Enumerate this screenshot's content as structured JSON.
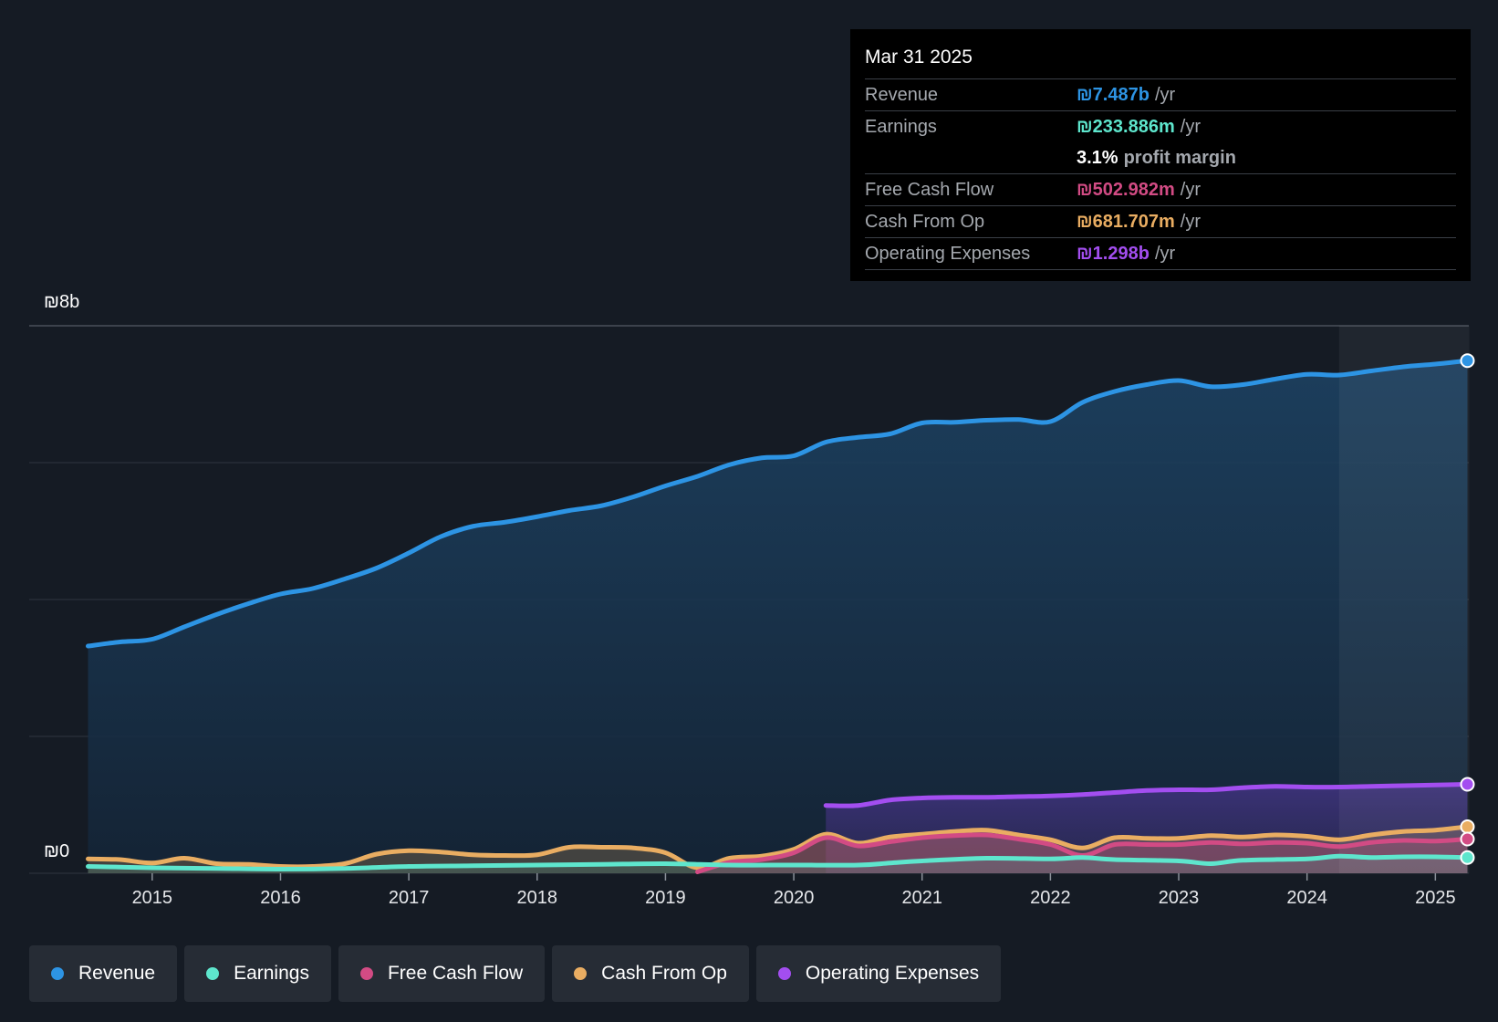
{
  "colors": {
    "revenue": "#2d94e4",
    "earnings": "#5ee6cd",
    "fcf": "#d24b84",
    "cfo": "#e9ad62",
    "opex": "#a34ef0"
  },
  "tooltip": {
    "date": "Mar 31 2025",
    "rows": {
      "revenue": {
        "label": "Revenue",
        "value": "₪7.487b",
        "unit": "/yr"
      },
      "earnings": {
        "label": "Earnings",
        "value": "₪233.886m",
        "unit": "/yr"
      },
      "margin": {
        "pct": "3.1%",
        "label": "profit margin"
      },
      "fcf": {
        "label": "Free Cash Flow",
        "value": "₪502.982m",
        "unit": "/yr"
      },
      "cfo": {
        "label": "Cash From Op",
        "value": "₪681.707m",
        "unit": "/yr"
      },
      "opex": {
        "label": "Operating Expenses",
        "value": "₪1.298b",
        "unit": "/yr"
      }
    }
  },
  "legend": {
    "revenue": "Revenue",
    "earnings": "Earnings",
    "fcf": "Free Cash Flow",
    "cfo": "Cash From Op",
    "opex": "Operating Expenses"
  },
  "chart_data": {
    "type": "area",
    "currency": "₪",
    "units": "billions",
    "ylim": [
      0,
      8
    ],
    "y_labels": {
      "top": "₪8b",
      "bottom": "₪0"
    },
    "x_ticks": [
      "2015",
      "2016",
      "2017",
      "2018",
      "2019",
      "2020",
      "2021",
      "2022",
      "2023",
      "2024",
      "2025"
    ],
    "forecast_shade_start": 2024.25,
    "series": [
      {
        "key": "revenue",
        "name": "Revenue",
        "points": [
          [
            2014.5,
            3.32
          ],
          [
            2014.75,
            3.38
          ],
          [
            2015.0,
            3.42
          ],
          [
            2015.25,
            3.6
          ],
          [
            2015.5,
            3.78
          ],
          [
            2015.75,
            3.94
          ],
          [
            2016.0,
            4.08
          ],
          [
            2016.25,
            4.16
          ],
          [
            2016.5,
            4.3
          ],
          [
            2016.75,
            4.46
          ],
          [
            2017.0,
            4.68
          ],
          [
            2017.25,
            4.92
          ],
          [
            2017.5,
            5.07
          ],
          [
            2017.75,
            5.13
          ],
          [
            2018.0,
            5.21
          ],
          [
            2018.25,
            5.3
          ],
          [
            2018.5,
            5.37
          ],
          [
            2018.75,
            5.5
          ],
          [
            2019.0,
            5.66
          ],
          [
            2019.25,
            5.8
          ],
          [
            2019.5,
            5.97
          ],
          [
            2019.75,
            6.07
          ],
          [
            2020.0,
            6.1
          ],
          [
            2020.25,
            6.3
          ],
          [
            2020.5,
            6.37
          ],
          [
            2020.75,
            6.42
          ],
          [
            2021.0,
            6.58
          ],
          [
            2021.25,
            6.59
          ],
          [
            2021.5,
            6.62
          ],
          [
            2021.75,
            6.63
          ],
          [
            2022.0,
            6.6
          ],
          [
            2022.25,
            6.88
          ],
          [
            2022.5,
            7.04
          ],
          [
            2022.75,
            7.14
          ],
          [
            2023.0,
            7.2
          ],
          [
            2023.25,
            7.11
          ],
          [
            2023.5,
            7.14
          ],
          [
            2023.75,
            7.22
          ],
          [
            2024.0,
            7.29
          ],
          [
            2024.25,
            7.28
          ],
          [
            2024.5,
            7.34
          ],
          [
            2024.75,
            7.4
          ],
          [
            2025.0,
            7.44
          ],
          [
            2025.25,
            7.49
          ]
        ]
      },
      {
        "key": "opex",
        "name": "Operating Expenses",
        "points": [
          [
            2020.25,
            0.99
          ],
          [
            2020.5,
            0.99
          ],
          [
            2020.75,
            1.07
          ],
          [
            2021.0,
            1.1
          ],
          [
            2021.25,
            1.11
          ],
          [
            2021.5,
            1.11
          ],
          [
            2021.75,
            1.12
          ],
          [
            2022.0,
            1.13
          ],
          [
            2022.25,
            1.15
          ],
          [
            2022.5,
            1.18
          ],
          [
            2022.75,
            1.21
          ],
          [
            2023.0,
            1.22
          ],
          [
            2023.25,
            1.22
          ],
          [
            2023.5,
            1.25
          ],
          [
            2023.75,
            1.27
          ],
          [
            2024.0,
            1.26
          ],
          [
            2024.25,
            1.26
          ],
          [
            2024.5,
            1.27
          ],
          [
            2024.75,
            1.28
          ],
          [
            2025.0,
            1.29
          ],
          [
            2025.25,
            1.3
          ]
        ]
      },
      {
        "key": "cfo",
        "name": "Cash From Op",
        "points": [
          [
            2014.5,
            0.21
          ],
          [
            2014.75,
            0.2
          ],
          [
            2015.0,
            0.15
          ],
          [
            2015.25,
            0.22
          ],
          [
            2015.5,
            0.14
          ],
          [
            2015.75,
            0.13
          ],
          [
            2016.0,
            0.1
          ],
          [
            2016.25,
            0.1
          ],
          [
            2016.5,
            0.14
          ],
          [
            2016.75,
            0.28
          ],
          [
            2017.0,
            0.33
          ],
          [
            2017.25,
            0.31
          ],
          [
            2017.5,
            0.27
          ],
          [
            2017.75,
            0.26
          ],
          [
            2018.0,
            0.27
          ],
          [
            2018.25,
            0.38
          ],
          [
            2018.5,
            0.38
          ],
          [
            2018.75,
            0.37
          ],
          [
            2019.0,
            0.3
          ],
          [
            2019.25,
            0.08
          ],
          [
            2019.5,
            0.22
          ],
          [
            2019.75,
            0.25
          ],
          [
            2020.0,
            0.35
          ],
          [
            2020.25,
            0.57
          ],
          [
            2020.5,
            0.44
          ],
          [
            2020.75,
            0.53
          ],
          [
            2021.0,
            0.57
          ],
          [
            2021.25,
            0.61
          ],
          [
            2021.5,
            0.63
          ],
          [
            2021.75,
            0.56
          ],
          [
            2022.0,
            0.49
          ],
          [
            2022.25,
            0.37
          ],
          [
            2022.5,
            0.52
          ],
          [
            2022.75,
            0.51
          ],
          [
            2023.0,
            0.51
          ],
          [
            2023.25,
            0.55
          ],
          [
            2023.5,
            0.53
          ],
          [
            2023.75,
            0.56
          ],
          [
            2024.0,
            0.54
          ],
          [
            2024.25,
            0.49
          ],
          [
            2024.5,
            0.56
          ],
          [
            2024.75,
            0.61
          ],
          [
            2025.0,
            0.63
          ],
          [
            2025.25,
            0.68
          ]
        ]
      },
      {
        "key": "fcf",
        "name": "Free Cash Flow",
        "points": [
          [
            2019.25,
            0.02
          ],
          [
            2019.5,
            0.16
          ],
          [
            2019.75,
            0.2
          ],
          [
            2020.0,
            0.3
          ],
          [
            2020.25,
            0.52
          ],
          [
            2020.5,
            0.4
          ],
          [
            2020.75,
            0.46
          ],
          [
            2021.0,
            0.52
          ],
          [
            2021.25,
            0.55
          ],
          [
            2021.5,
            0.56
          ],
          [
            2021.75,
            0.5
          ],
          [
            2022.0,
            0.42
          ],
          [
            2022.25,
            0.26
          ],
          [
            2022.5,
            0.42
          ],
          [
            2022.75,
            0.42
          ],
          [
            2023.0,
            0.42
          ],
          [
            2023.25,
            0.45
          ],
          [
            2023.5,
            0.43
          ],
          [
            2023.75,
            0.45
          ],
          [
            2024.0,
            0.44
          ],
          [
            2024.25,
            0.39
          ],
          [
            2024.5,
            0.45
          ],
          [
            2024.75,
            0.48
          ],
          [
            2025.0,
            0.47
          ],
          [
            2025.25,
            0.5
          ]
        ]
      },
      {
        "key": "earnings",
        "name": "Earnings",
        "points": [
          [
            2014.5,
            0.1
          ],
          [
            2014.75,
            0.09
          ],
          [
            2015.0,
            0.08
          ],
          [
            2015.5,
            0.07
          ],
          [
            2016.0,
            0.06
          ],
          [
            2016.5,
            0.07
          ],
          [
            2017.0,
            0.1
          ],
          [
            2017.5,
            0.11
          ],
          [
            2018.0,
            0.12
          ],
          [
            2018.5,
            0.13
          ],
          [
            2019.0,
            0.14
          ],
          [
            2019.5,
            0.12
          ],
          [
            2020.0,
            0.12
          ],
          [
            2020.5,
            0.12
          ],
          [
            2020.75,
            0.15
          ],
          [
            2021.0,
            0.18
          ],
          [
            2021.5,
            0.22
          ],
          [
            2022.0,
            0.21
          ],
          [
            2022.25,
            0.23
          ],
          [
            2022.5,
            0.2
          ],
          [
            2023.0,
            0.18
          ],
          [
            2023.25,
            0.14
          ],
          [
            2023.5,
            0.19
          ],
          [
            2024.0,
            0.21
          ],
          [
            2024.25,
            0.25
          ],
          [
            2024.5,
            0.23
          ],
          [
            2024.75,
            0.24
          ],
          [
            2025.0,
            0.24
          ],
          [
            2025.25,
            0.23
          ]
        ]
      }
    ]
  }
}
